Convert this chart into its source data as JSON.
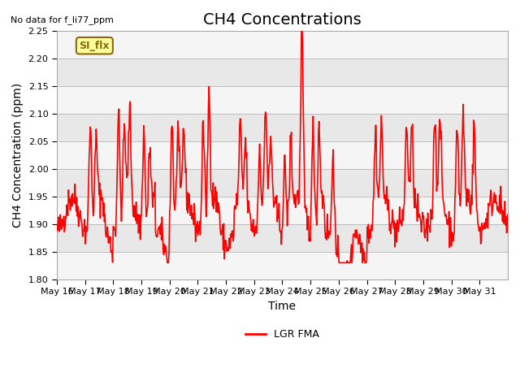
{
  "title": "CH4 Concentrations",
  "top_left_text": "No data for f_li77_ppm",
  "ylabel": "CH4 Concentration (ppm)",
  "xlabel": "Time",
  "ylim": [
    1.8,
    2.25
  ],
  "yticks": [
    1.8,
    1.85,
    1.9,
    1.95,
    2.0,
    2.05,
    2.1,
    2.15,
    2.2,
    2.25
  ],
  "line_color": "#FF0000",
  "line_label": "LGR FMA",
  "line_width": 1.2,
  "annotation_text": "SI_flx",
  "annotation_color": "#8B6914",
  "annotation_bg": "#FFFF99",
  "annotation_border": "#8B6914",
  "bg_color": "#FFFFFF",
  "plot_bg_color": "#E8E8E8",
  "x_tick_labels": [
    "May 16",
    "May 17",
    "May 18",
    "May 19",
    "May 20",
    "May 21",
    "May 22",
    "May 23",
    "May 24",
    "May 25",
    "May 26",
    "May 27",
    "May 28",
    "May 29",
    "May 30",
    "May 31"
  ],
  "title_fontsize": 14,
  "axis_label_fontsize": 10,
  "tick_fontsize": 8
}
